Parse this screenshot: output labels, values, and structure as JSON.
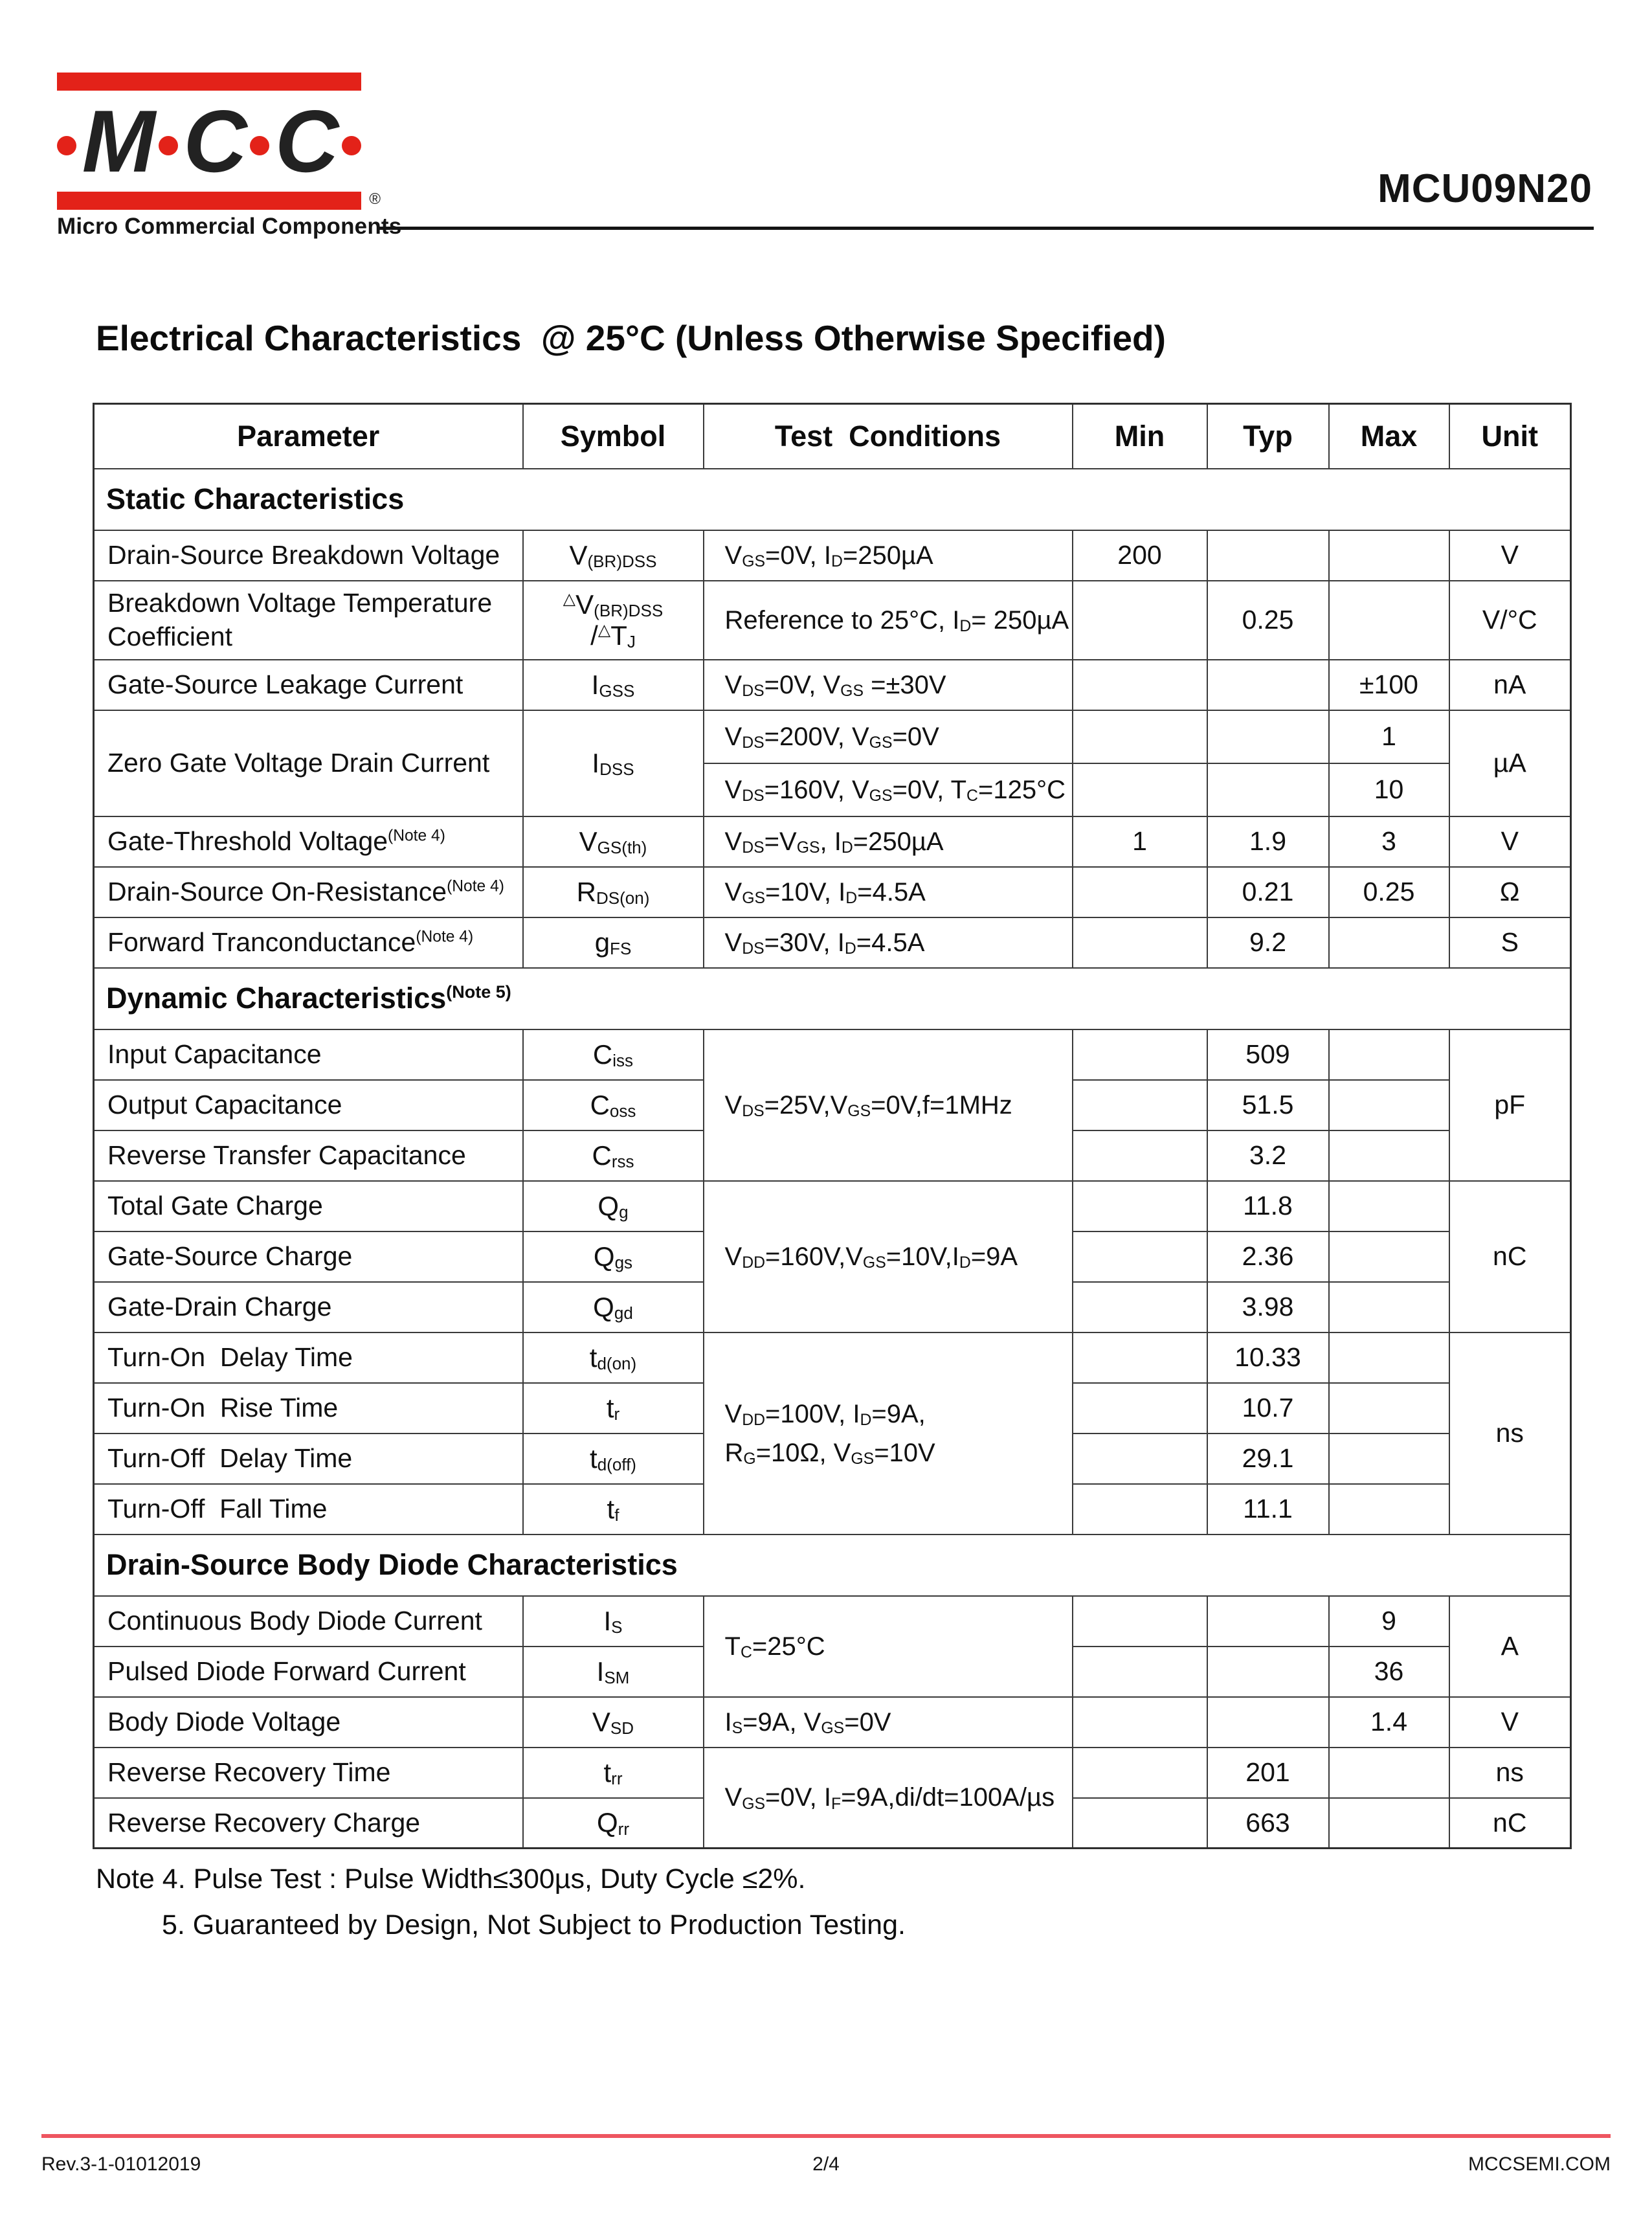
{
  "header": {
    "logo": {
      "letters": [
        "M",
        "C",
        "C"
      ],
      "tagline": "Micro Commercial Components",
      "registered_mark": "®",
      "red": "#e32219"
    },
    "part_number": "MCU09N20"
  },
  "title": "Electrical Characteristics  @ 25°C (Unless Otherwise Specified)",
  "table": {
    "columns": [
      "Parameter",
      "Symbol",
      "Test  Conditions",
      "Min",
      "Typ",
      "Max",
      "Unit"
    ],
    "rows": [
      {
        "variant": "section",
        "cells": [
          {
            "k": "section",
            "t": "Static Characteristics",
            "cs": 7
          }
        ]
      },
      {
        "variant": "row",
        "cells": [
          {
            "k": "param",
            "t": "Drain-Source Breakdown Voltage"
          },
          {
            "k": "sym",
            "t": "V~(BR)DSS~"
          },
          {
            "k": "test",
            "t": "V~GS~=0V, I~D~=250µA"
          },
          {
            "k": "num",
            "t": "200"
          },
          {
            "k": "num",
            "t": ""
          },
          {
            "k": "num",
            "t": ""
          },
          {
            "k": "unit",
            "t": "V"
          }
        ]
      },
      {
        "variant": "tall",
        "cells": [
          {
            "k": "param",
            "t": "Breakdown Voltage Temperature\nCoefficient"
          },
          {
            "k": "sym",
            "t": "^△^V~(BR)DSS~\n/^△^T~J~"
          },
          {
            "k": "test",
            "t": "Reference to 25°C, I~D~= 250µA"
          },
          {
            "k": "num",
            "t": ""
          },
          {
            "k": "num",
            "t": "0.25"
          },
          {
            "k": "num",
            "t": ""
          },
          {
            "k": "unit",
            "t": "V/°C"
          }
        ]
      },
      {
        "variant": "row",
        "cells": [
          {
            "k": "param",
            "t": "Gate-Source Leakage Current"
          },
          {
            "k": "sym",
            "t": "I~GSS~"
          },
          {
            "k": "test",
            "t": "V~DS~=0V, V~GS~ =±30V"
          },
          {
            "k": "num",
            "t": ""
          },
          {
            "k": "num",
            "t": ""
          },
          {
            "k": "num",
            "t": "±100"
          },
          {
            "k": "unit",
            "t": "nA"
          }
        ]
      },
      {
        "variant": "sub",
        "cells": [
          {
            "k": "param",
            "t": "Zero Gate Voltage Drain Current",
            "rs": 2
          },
          {
            "k": "sym",
            "t": "I~DSS~",
            "rs": 2
          },
          {
            "k": "test",
            "t": "V~DS~=200V, V~GS~=0V"
          },
          {
            "k": "num",
            "t": ""
          },
          {
            "k": "num",
            "t": ""
          },
          {
            "k": "num",
            "t": "1"
          },
          {
            "k": "unit",
            "t": "µA",
            "rs": 2
          }
        ]
      },
      {
        "variant": "sub",
        "cells": [
          {
            "k": "test",
            "t": "V~DS~=160V, V~GS~=0V, T~C~=125°C"
          },
          {
            "k": "num",
            "t": ""
          },
          {
            "k": "num",
            "t": ""
          },
          {
            "k": "num",
            "t": "10"
          }
        ]
      },
      {
        "variant": "row",
        "cells": [
          {
            "k": "param",
            "t": "Gate-Threshold Voltage^(Note 4)^"
          },
          {
            "k": "sym",
            "t": "V~GS(th)~"
          },
          {
            "k": "test",
            "t": "V~DS~=V~GS~, I~D~=250µA"
          },
          {
            "k": "num",
            "t": "1"
          },
          {
            "k": "num",
            "t": "1.9"
          },
          {
            "k": "num",
            "t": "3"
          },
          {
            "k": "unit",
            "t": "V"
          }
        ]
      },
      {
        "variant": "row",
        "cells": [
          {
            "k": "param",
            "t": "Drain-Source On-Resistance^(Note 4)^"
          },
          {
            "k": "sym",
            "t": "R~DS(on)~"
          },
          {
            "k": "test",
            "t": "V~GS~=10V, I~D~=4.5A"
          },
          {
            "k": "num",
            "t": ""
          },
          {
            "k": "num",
            "t": "0.21"
          },
          {
            "k": "num",
            "t": "0.25"
          },
          {
            "k": "unit",
            "t": "Ω"
          }
        ]
      },
      {
        "variant": "row",
        "cells": [
          {
            "k": "param",
            "t": "Forward Tranconductance^(Note 4)^"
          },
          {
            "k": "sym",
            "t": "g~FS~"
          },
          {
            "k": "test",
            "t": "V~DS~=30V, I~D~=4.5A"
          },
          {
            "k": "num",
            "t": ""
          },
          {
            "k": "num",
            "t": "9.2"
          },
          {
            "k": "num",
            "t": ""
          },
          {
            "k": "unit",
            "t": "S"
          }
        ]
      },
      {
        "variant": "section",
        "cells": [
          {
            "k": "section",
            "t": "Dynamic Characteristics^(Note 5)^",
            "cs": 7
          }
        ]
      },
      {
        "variant": "row",
        "cells": [
          {
            "k": "param",
            "t": "Input Capacitance"
          },
          {
            "k": "sym",
            "t": "C~iss~"
          },
          {
            "k": "test",
            "t": "V~DS~=25V,V~GS~=0V,f=1MHz",
            "rs": 3
          },
          {
            "k": "num",
            "t": ""
          },
          {
            "k": "num",
            "t": "509"
          },
          {
            "k": "num",
            "t": ""
          },
          {
            "k": "unit",
            "t": "pF",
            "rs": 3
          }
        ]
      },
      {
        "variant": "row",
        "cells": [
          {
            "k": "param",
            "t": "Output Capacitance"
          },
          {
            "k": "sym",
            "t": "C~oss~"
          },
          {
            "k": "num",
            "t": ""
          },
          {
            "k": "num",
            "t": "51.5"
          },
          {
            "k": "num",
            "t": ""
          }
        ]
      },
      {
        "variant": "row",
        "cells": [
          {
            "k": "param",
            "t": "Reverse Transfer Capacitance"
          },
          {
            "k": "sym",
            "t": "C~rss~"
          },
          {
            "k": "num",
            "t": ""
          },
          {
            "k": "num",
            "t": "3.2"
          },
          {
            "k": "num",
            "t": ""
          }
        ]
      },
      {
        "variant": "row",
        "cells": [
          {
            "k": "param",
            "t": "Total Gate Charge"
          },
          {
            "k": "sym",
            "t": "Q~g~"
          },
          {
            "k": "test",
            "t": "V~DD~=160V,V~GS~=10V,I~D~=9A",
            "rs": 3
          },
          {
            "k": "num",
            "t": ""
          },
          {
            "k": "num",
            "t": "11.8"
          },
          {
            "k": "num",
            "t": ""
          },
          {
            "k": "unit",
            "t": "nC",
            "rs": 3
          }
        ]
      },
      {
        "variant": "row",
        "cells": [
          {
            "k": "param",
            "t": "Gate-Source Charge"
          },
          {
            "k": "sym",
            "t": "Q~gs~"
          },
          {
            "k": "num",
            "t": ""
          },
          {
            "k": "num",
            "t": "2.36"
          },
          {
            "k": "num",
            "t": ""
          }
        ]
      },
      {
        "variant": "row",
        "cells": [
          {
            "k": "param",
            "t": "Gate-Drain Charge"
          },
          {
            "k": "sym",
            "t": "Q~gd~"
          },
          {
            "k": "num",
            "t": ""
          },
          {
            "k": "num",
            "t": "3.98"
          },
          {
            "k": "num",
            "t": ""
          }
        ]
      },
      {
        "variant": "row",
        "cells": [
          {
            "k": "param",
            "t": "Turn-On  Delay Time"
          },
          {
            "k": "sym",
            "t": "t~d(on)~"
          },
          {
            "k": "test",
            "t": "V~DD~=100V, I~D~=9A,\nR~G~=10Ω, V~GS~=10V",
            "rs": 4
          },
          {
            "k": "num",
            "t": ""
          },
          {
            "k": "num",
            "t": "10.33"
          },
          {
            "k": "num",
            "t": ""
          },
          {
            "k": "unit",
            "t": "ns",
            "rs": 4
          }
        ]
      },
      {
        "variant": "row",
        "cells": [
          {
            "k": "param",
            "t": "Turn-On  Rise Time"
          },
          {
            "k": "sym",
            "t": "t~r~"
          },
          {
            "k": "num",
            "t": ""
          },
          {
            "k": "num",
            "t": "10.7"
          },
          {
            "k": "num",
            "t": ""
          }
        ]
      },
      {
        "variant": "row",
        "cells": [
          {
            "k": "param",
            "t": "Turn-Off  Delay Time"
          },
          {
            "k": "sym",
            "t": "t~d(off)~"
          },
          {
            "k": "num",
            "t": ""
          },
          {
            "k": "num",
            "t": "29.1"
          },
          {
            "k": "num",
            "t": ""
          }
        ]
      },
      {
        "variant": "row",
        "cells": [
          {
            "k": "param",
            "t": "Turn-Off  Fall Time"
          },
          {
            "k": "sym",
            "t": "t~f~"
          },
          {
            "k": "num",
            "t": ""
          },
          {
            "k": "num",
            "t": "11.1"
          },
          {
            "k": "num",
            "t": ""
          }
        ]
      },
      {
        "variant": "section",
        "cells": [
          {
            "k": "section",
            "t": "Drain-Source Body Diode Characteristics",
            "cs": 7
          }
        ]
      },
      {
        "variant": "row",
        "cells": [
          {
            "k": "param",
            "t": "Continuous Body Diode Current"
          },
          {
            "k": "sym",
            "t": "I~S~"
          },
          {
            "k": "test",
            "t": "T~C~=25°C",
            "rs": 2
          },
          {
            "k": "num",
            "t": ""
          },
          {
            "k": "num",
            "t": ""
          },
          {
            "k": "num",
            "t": "9"
          },
          {
            "k": "unit",
            "t": "A",
            "rs": 2
          }
        ]
      },
      {
        "variant": "row",
        "cells": [
          {
            "k": "param",
            "t": "Pulsed Diode Forward Current"
          },
          {
            "k": "sym",
            "t": "I~SM~"
          },
          {
            "k": "num",
            "t": ""
          },
          {
            "k": "num",
            "t": ""
          },
          {
            "k": "num",
            "t": "36"
          }
        ]
      },
      {
        "variant": "row",
        "cells": [
          {
            "k": "param",
            "t": "Body Diode Voltage"
          },
          {
            "k": "sym",
            "t": "V~SD~"
          },
          {
            "k": "test",
            "t": "I~S~=9A, V~GS~=0V"
          },
          {
            "k": "num",
            "t": ""
          },
          {
            "k": "num",
            "t": ""
          },
          {
            "k": "num",
            "t": "1.4"
          },
          {
            "k": "unit",
            "t": "V"
          }
        ]
      },
      {
        "variant": "row",
        "cells": [
          {
            "k": "param",
            "t": "Reverse Recovery Time"
          },
          {
            "k": "sym",
            "t": "t~rr~"
          },
          {
            "k": "test",
            "t": "V~GS~=0V, I~F~=9A,di/dt=100A/µs",
            "rs": 2
          },
          {
            "k": "num",
            "t": ""
          },
          {
            "k": "num",
            "t": "201"
          },
          {
            "k": "num",
            "t": ""
          },
          {
            "k": "unit",
            "t": "ns"
          }
        ]
      },
      {
        "variant": "row",
        "cells": [
          {
            "k": "param",
            "t": "Reverse Recovery Charge"
          },
          {
            "k": "sym",
            "t": "Q~rr~"
          },
          {
            "k": "num",
            "t": ""
          },
          {
            "k": "num",
            "t": "663"
          },
          {
            "k": "num",
            "t": ""
          },
          {
            "k": "unit",
            "t": "nC"
          }
        ]
      }
    ]
  },
  "notes": [
    {
      "text": "Note 4. Pulse Test : Pulse Width≤300µs, Duty Cycle ≤2%.",
      "indent": false
    },
    {
      "text": "5. Guaranteed by Design, Not Subject to Production Testing.",
      "indent": true
    }
  ],
  "footer": {
    "revision": "Rev.3-1-01012019",
    "page": "2/4",
    "website": "MCCSEMI.COM",
    "line_color": "#ee5560"
  }
}
